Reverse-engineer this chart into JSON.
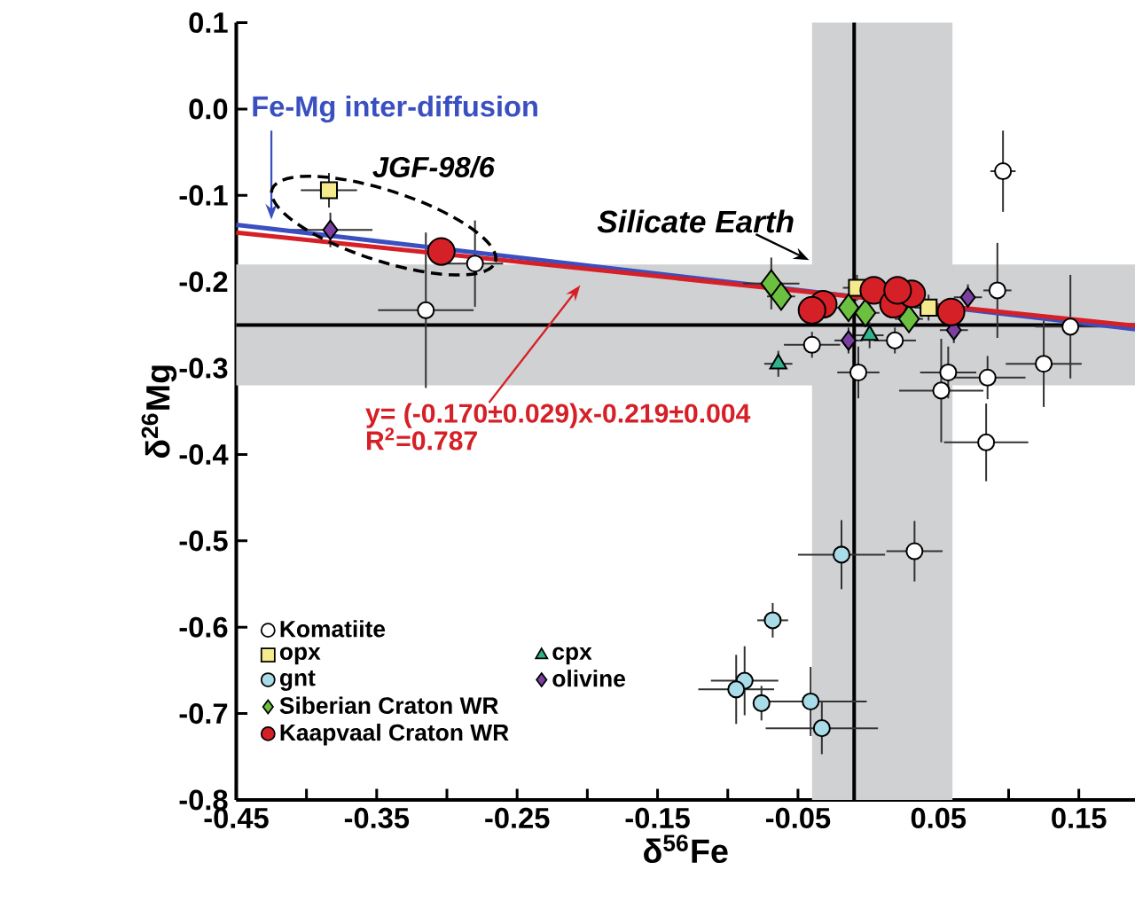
{
  "chart_data": {
    "type": "scatter",
    "xlabel": "δ$^{56}$Fe",
    "ylabel": "δ$^{26}$Mg",
    "xlim": [
      -0.45,
      0.19
    ],
    "ylim": [
      -0.8,
      0.1
    ],
    "xticks": [
      -0.45,
      {
        "value": -0.4,
        "label": null
      },
      -0.35,
      {
        "value": -0.3,
        "label": null
      },
      -0.25,
      {
        "value": -0.2,
        "label": null
      },
      -0.15,
      {
        "value": -0.1,
        "label": null
      },
      -0.05,
      {
        "value": 0,
        "label": null
      },
      0.05,
      {
        "value": 0.1,
        "label": null
      },
      0.15
    ],
    "yticks": [
      -0.8,
      -0.7,
      -0.6,
      -0.5,
      -0.4,
      -0.3,
      -0.2,
      -0.1,
      {
        "value": 0,
        "label": "0.0"
      },
      0.1
    ],
    "legend": "bottom left",
    "series": [
      {
        "name": "Komatiite",
        "color": "#ffffff",
        "marker": "circle",
        "x": [
          -0.28,
          -0.315,
          0.096,
          0.092,
          0.144,
          0.125,
          0.057,
          0.085,
          0.052,
          0.084,
          -0.04,
          -0.007,
          0.019,
          0.033
        ],
        "values": [
          -0.179,
          -0.233,
          -0.072,
          -0.21,
          -0.252,
          -0.295,
          -0.305,
          -0.311,
          -0.326,
          -0.386,
          -0.273,
          -0.305,
          -0.268,
          -0.512
        ],
        "xerrors": [
          0.02,
          0.034,
          0.009,
          0.01,
          0.025,
          0.027,
          0.02,
          0.027,
          0.03,
          0.03,
          0.02,
          0.015,
          0.015,
          0.02
        ],
        "errors": [
          0.05,
          0.09,
          0.047,
          0.055,
          0.06,
          0.05,
          0.03,
          0.025,
          0.06,
          0.045,
          0.015,
          0.03,
          0.015,
          0.035
        ]
      },
      {
        "name": "opx",
        "color": "#f5eb8c",
        "marker": "square",
        "x": [
          -0.384,
          -0.008,
          0.043
        ],
        "values": [
          -0.094,
          -0.207,
          -0.23
        ],
        "xerrors": [
          0.02,
          0.01,
          0.01
        ],
        "errors": [
          0.02,
          0.015,
          0.015
        ]
      },
      {
        "name": "cpx",
        "color": "#2fb38f",
        "marker": "triangle",
        "x": [
          -0.064,
          0.001
        ],
        "values": [
          -0.295,
          -0.262
        ],
        "xerrors": [
          0.01,
          0.01
        ],
        "errors": [
          0.015,
          0.015
        ]
      },
      {
        "name": "gnt",
        "color": "#a8dce8",
        "marker": "circle",
        "x": [
          -0.019,
          -0.068,
          -0.088,
          -0.094,
          -0.076,
          -0.041,
          -0.033
        ],
        "values": [
          -0.516,
          -0.592,
          -0.662,
          -0.672,
          -0.688,
          -0.686,
          -0.717
        ],
        "xerrors": [
          0.031,
          0.011,
          0.024,
          0.027,
          null,
          0.04,
          0.04
        ],
        "errors": [
          0.04,
          0.02,
          0.04,
          0.04,
          0.02,
          0.04,
          0.03
        ]
      },
      {
        "name": "olivine",
        "color": "#7b3fa0",
        "marker": "diamond",
        "x": [
          -0.383,
          0.071,
          -0.014,
          0.061
        ],
        "values": [
          -0.14,
          -0.218,
          -0.268,
          -0.256
        ],
        "xerrors": [
          0.03,
          0.01,
          0.01,
          0.01
        ],
        "errors": [
          0.02,
          0.015,
          0.015,
          0.015
        ]
      },
      {
        "name": "Siberian Craton WR",
        "color": "#6cc040",
        "marker": "diamond",
        "x": [
          -0.069,
          -0.062,
          -0.014,
          -0.002,
          0.029
        ],
        "values": [
          -0.202,
          -0.217,
          -0.23,
          -0.236,
          -0.243
        ],
        "xerrors": [
          0.02,
          0.01,
          0.01,
          0.01,
          0.01
        ],
        "errors": [
          0.03,
          0.015,
          0.015,
          0.015,
          0.015
        ]
      },
      {
        "name": "Kaapvaal Craton WR",
        "color": "#d62027",
        "marker": "circle",
        "x": [
          -0.304,
          -0.032,
          -0.04,
          0.004,
          0.018,
          0.031,
          0.059,
          0.021
        ],
        "values": [
          -0.165,
          -0.226,
          -0.233,
          -0.21,
          -0.226,
          -0.214,
          -0.235,
          -0.21
        ],
        "xerrors": [
          0.01,
          null,
          null,
          null,
          null,
          null,
          null,
          null
        ],
        "errors": [
          0.015,
          null,
          null,
          null,
          null,
          null,
          null,
          null
        ]
      },
      {
        "name": "Fe-Mg inter-diffusion",
        "type": "line",
        "color": "#3a4fc0",
        "x": [
          -0.45,
          0.19
        ],
        "values": [
          -0.134,
          -0.255
        ]
      },
      {
        "type": "line",
        "color": "#d62027",
        "x": [
          -0.45,
          0.19
        ],
        "values": [
          -0.143,
          -0.251
        ]
      }
    ],
    "ref_lines": [
      {
        "axis": "y",
        "value": -0.25,
        "color": "#000000"
      },
      {
        "axis": "x",
        "value": -0.01,
        "color": "#000000"
      }
    ],
    "bands": [
      {
        "axis": "y",
        "from": -0.18,
        "to": -0.32,
        "color": "#d0d1d3"
      },
      {
        "axis": "x",
        "from": -0.04,
        "to": 0.06,
        "color": "#d0d1d3"
      }
    ],
    "annotations": [
      {
        "text": "Silicate Earth",
        "x": -0.042,
        "y": -0.175
      },
      "JGF-98/6",
      "y= (-0.170±0.029)x-0.219±0.004",
      "R$^{2}$=0.787"
    ]
  }
}
